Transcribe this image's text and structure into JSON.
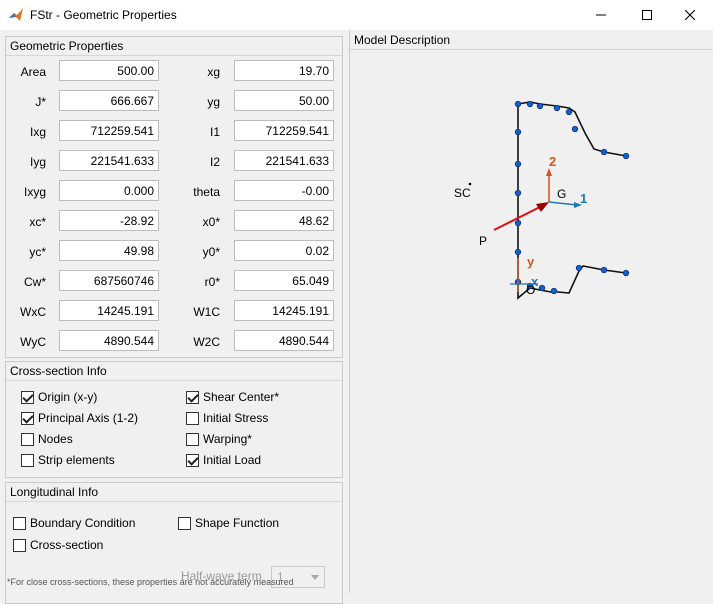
{
  "window": {
    "title": "FStr - Geometric Properties"
  },
  "geometric": {
    "title": "Geometric Properties",
    "left": [
      {
        "label": "Area",
        "value": "500.00"
      },
      {
        "label": "J*",
        "value": "666.667"
      },
      {
        "label": "Ixg",
        "value": "712259.541"
      },
      {
        "label": "Iyg",
        "value": "221541.633"
      },
      {
        "label": "Ixyg",
        "value": "0.000"
      },
      {
        "label": "xc*",
        "value": "-28.92"
      },
      {
        "label": "yc*",
        "value": "49.98"
      },
      {
        "label": "Cw*",
        "value": "687560746"
      },
      {
        "label": "WxC",
        "value": "14245.191"
      },
      {
        "label": "WyC",
        "value": "4890.544"
      }
    ],
    "right": [
      {
        "label": "xg",
        "value": "19.70"
      },
      {
        "label": "yg",
        "value": "50.00"
      },
      {
        "label": "I1",
        "value": "712259.541"
      },
      {
        "label": "I2",
        "value": "221541.633"
      },
      {
        "label": "theta",
        "value": "-0.00"
      },
      {
        "label": "x0*",
        "value": "48.62"
      },
      {
        "label": "y0*",
        "value": "0.02"
      },
      {
        "label": "r0*",
        "value": "65.049"
      },
      {
        "label": "W1C",
        "value": "14245.191"
      },
      {
        "label": "W2C",
        "value": "4890.544"
      }
    ]
  },
  "cross_section": {
    "title": "Cross-section Info",
    "items": [
      {
        "label": "Origin (x-y)",
        "checked": true
      },
      {
        "label": "Shear Center*",
        "checked": true
      },
      {
        "label": "Principal Axis (1-2)",
        "checked": true
      },
      {
        "label": "Initial Stress",
        "checked": false
      },
      {
        "label": "Nodes",
        "checked": false
      },
      {
        "label": "Warping*",
        "checked": false
      },
      {
        "label": "Strip elements",
        "checked": false
      },
      {
        "label": "Initial Load",
        "checked": true
      }
    ]
  },
  "longitudinal": {
    "title": "Longitudinal Info",
    "boundary_label": "Boundary Condition",
    "boundary_checked": false,
    "shape_label": "Shape Function",
    "shape_checked": false,
    "cross_label": "Cross-section",
    "cross_checked": false,
    "halfwave_label": "Half-wave term",
    "halfwave_value": "1"
  },
  "footnote": "*For close cross-sections, these properties are not accurately measured",
  "model": {
    "title": "Model Description",
    "labels": {
      "sc": "SC",
      "g": "G",
      "axis1": "1",
      "axis2": "2",
      "p": "P",
      "y": "y",
      "x": "x",
      "o": "O"
    },
    "colors": {
      "axis1": "#1f77b4",
      "axis2": "#d95319",
      "load": "#e01010",
      "node": "#1560d0"
    }
  }
}
